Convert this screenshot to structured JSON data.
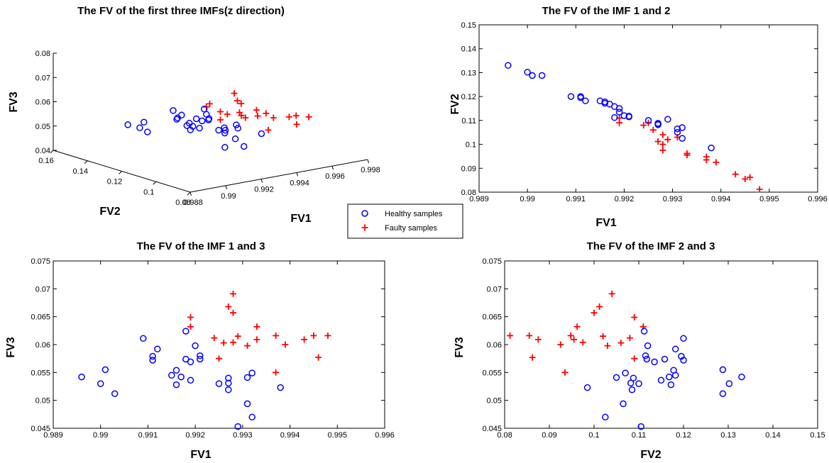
{
  "colors": {
    "healthy": "#0000ff",
    "faulty": "#ff0000",
    "axis": "#000000"
  },
  "legend": {
    "healthy_label": "Healthy samples",
    "faulty_label": "Faulty samples"
  },
  "chart_data": [
    {
      "id": "ax3d",
      "type": "scatter",
      "title": "The FV of the first three IMFs(z direction)",
      "xlabel": "FV1",
      "ylabel": "FV2",
      "zlabel": "FV3",
      "xlim": [
        0.988,
        0.998
      ],
      "ylim": [
        0.08,
        0.16
      ],
      "zlim": [
        0.04,
        0.08
      ],
      "xticks": [
        "0.988",
        "0.99",
        "0.992",
        "0.994",
        "0.996",
        "0.998"
      ],
      "yticks": [
        "0.08",
        "0.1",
        "0.12",
        "0.14",
        "0.16"
      ],
      "zticks": [
        "0.04",
        "0.05",
        "0.06",
        "0.07",
        "0.08"
      ],
      "series": [
        {
          "name": "Healthy samples",
          "marker": "circle",
          "use": "healthy"
        },
        {
          "name": "Faulty samples",
          "marker": "plus",
          "use": "faulty"
        }
      ]
    },
    {
      "id": "ax12",
      "type": "scatter",
      "title": "The FV of the IMF 1 and 2",
      "xlabel": "FV1",
      "ylabel": "FV2",
      "xlim": [
        0.989,
        0.996
      ],
      "ylim": [
        0.08,
        0.15
      ],
      "xticks": [
        "0.989",
        "0.99",
        "0.991",
        "0.992",
        "0.993",
        "0.994",
        "0.995",
        "0.996"
      ],
      "yticks": [
        "0.08",
        "0.09",
        "0.1",
        "0.11",
        "0.12",
        "0.13",
        "0.14",
        "0.15"
      ],
      "xdim": 0,
      "ydim": 1
    },
    {
      "id": "ax13",
      "type": "scatter",
      "title": "The FV of the IMF 1 and 3",
      "xlabel": "FV1",
      "ylabel": "FV3",
      "xlim": [
        0.989,
        0.996
      ],
      "ylim": [
        0.045,
        0.075
      ],
      "xticks": [
        "0.989",
        "0.99",
        "0.991",
        "0.992",
        "0.993",
        "0.994",
        "0.995",
        "0.996"
      ],
      "yticks": [
        "0.045",
        "0.05",
        "0.055",
        "0.06",
        "0.065",
        "0.07",
        "0.075"
      ],
      "xdim": 0,
      "ydim": 2
    },
    {
      "id": "ax23",
      "type": "scatter",
      "title": "The FV of the IMF 2 and 3",
      "xlabel": "FV2",
      "ylabel": "FV3",
      "xlim": [
        0.08,
        0.15
      ],
      "ylim": [
        0.045,
        0.075
      ],
      "xticks": [
        "0.08",
        "0.09",
        "0.1",
        "0.11",
        "0.12",
        "0.13",
        "0.14",
        "0.15"
      ],
      "yticks": [
        "0.045",
        "0.05",
        "0.055",
        "0.06",
        "0.065",
        "0.07",
        "0.075"
      ],
      "xdim": 1,
      "ydim": 2
    }
  ],
  "samples": {
    "columns": [
      "FV1",
      "FV2",
      "FV3"
    ],
    "healthy": [
      [
        0.9896,
        0.133,
        0.0542
      ],
      [
        0.99,
        0.1302,
        0.053
      ],
      [
        0.9901,
        0.1288,
        0.0555
      ],
      [
        0.9903,
        0.1288,
        0.0512
      ],
      [
        0.9909,
        0.12,
        0.0611
      ],
      [
        0.9911,
        0.12,
        0.0572
      ],
      [
        0.9911,
        0.1195,
        0.0579
      ],
      [
        0.9912,
        0.1182,
        0.0592
      ],
      [
        0.9915,
        0.1182,
        0.0545
      ],
      [
        0.9916,
        0.1178,
        0.0554
      ],
      [
        0.9916,
        0.1172,
        0.0528
      ],
      [
        0.9917,
        0.1168,
        0.0542
      ],
      [
        0.9918,
        0.1158,
        0.0574
      ],
      [
        0.9918,
        0.1112,
        0.0624
      ],
      [
        0.9919,
        0.115,
        0.0536
      ],
      [
        0.9919,
        0.1135,
        0.0569
      ],
      [
        0.992,
        0.112,
        0.0598
      ],
      [
        0.9921,
        0.1118,
        0.0574
      ],
      [
        0.9921,
        0.1115,
        0.058
      ],
      [
        0.9925,
        0.11,
        0.053
      ],
      [
        0.9927,
        0.1088,
        0.054
      ],
      [
        0.9927,
        0.1082,
        0.0531
      ],
      [
        0.9927,
        0.1085,
        0.0519
      ],
      [
        0.9929,
        0.1105,
        0.0453
      ],
      [
        0.9931,
        0.1065,
        0.0494
      ],
      [
        0.9931,
        0.105,
        0.0541
      ],
      [
        0.9932,
        0.107,
        0.0549
      ],
      [
        0.9932,
        0.1025,
        0.047
      ],
      [
        0.9938,
        0.0985,
        0.0523
      ]
    ],
    "faulty": [
      [
        0.9919,
        0.109,
        0.0649
      ],
      [
        0.9919,
        0.111,
        0.0632
      ],
      [
        0.9924,
        0.108,
        0.0612
      ],
      [
        0.9925,
        0.109,
        0.0575
      ],
      [
        0.9926,
        0.106,
        0.0603
      ],
      [
        0.9927,
        0.1012,
        0.0668
      ],
      [
        0.9928,
        0.1,
        0.0657
      ],
      [
        0.9928,
        0.104,
        0.0691
      ],
      [
        0.9928,
        0.0975,
        0.0604
      ],
      [
        0.9929,
        0.102,
        0.0615
      ],
      [
        0.9931,
        0.103,
        0.0598
      ],
      [
        0.9933,
        0.0962,
        0.0632
      ],
      [
        0.9933,
        0.0955,
        0.0609
      ],
      [
        0.9937,
        0.0948,
        0.0616
      ],
      [
        0.9937,
        0.0935,
        0.055
      ],
      [
        0.9939,
        0.0925,
        0.06
      ],
      [
        0.9943,
        0.0875,
        0.0609
      ],
      [
        0.9945,
        0.0855,
        0.0616
      ],
      [
        0.9946,
        0.0862,
        0.0577
      ],
      [
        0.9948,
        0.0812,
        0.0616
      ]
    ]
  }
}
